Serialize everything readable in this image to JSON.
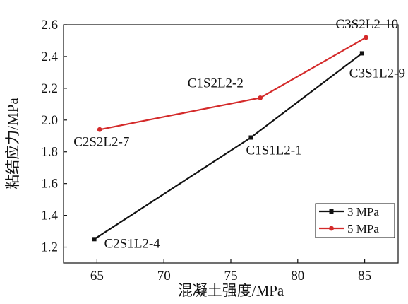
{
  "chart_data": {
    "type": "line",
    "xlabel": "混凝土强度/MPa",
    "ylabel": "粘结应力/MPa",
    "xlim": [
      62.5,
      87.5
    ],
    "ylim": [
      1.1,
      2.6
    ],
    "xticks": [
      65,
      70,
      75,
      80,
      85
    ],
    "yticks": [
      1.2,
      1.4,
      1.6,
      1.8,
      2.0,
      2.2,
      2.4,
      2.6
    ],
    "ytick_labels": [
      "1.2",
      "1.4",
      "1.6",
      "1.8",
      "2.0",
      "2.2",
      "2.4",
      "2.6"
    ],
    "grid": false,
    "legend_position": "bottom-right",
    "series": [
      {
        "name": "3 MPa",
        "color": "#111111",
        "marker": "square",
        "points": [
          {
            "x": 64.8,
            "y": 1.25,
            "label": "C2S1L2-4"
          },
          {
            "x": 76.5,
            "y": 1.89,
            "label": "C1S1L2-1"
          },
          {
            "x": 84.8,
            "y": 2.42,
            "label": "C3S1L2-9"
          }
        ]
      },
      {
        "name": "5 MPa",
        "color": "#d42a2a",
        "marker": "circle",
        "points": [
          {
            "x": 65.2,
            "y": 1.94,
            "label": "C2S2L2-7"
          },
          {
            "x": 77.2,
            "y": 2.14,
            "label": "C1S2L2-2"
          },
          {
            "x": 85.1,
            "y": 2.52,
            "label": "C3S2L2-10"
          }
        ]
      }
    ]
  }
}
